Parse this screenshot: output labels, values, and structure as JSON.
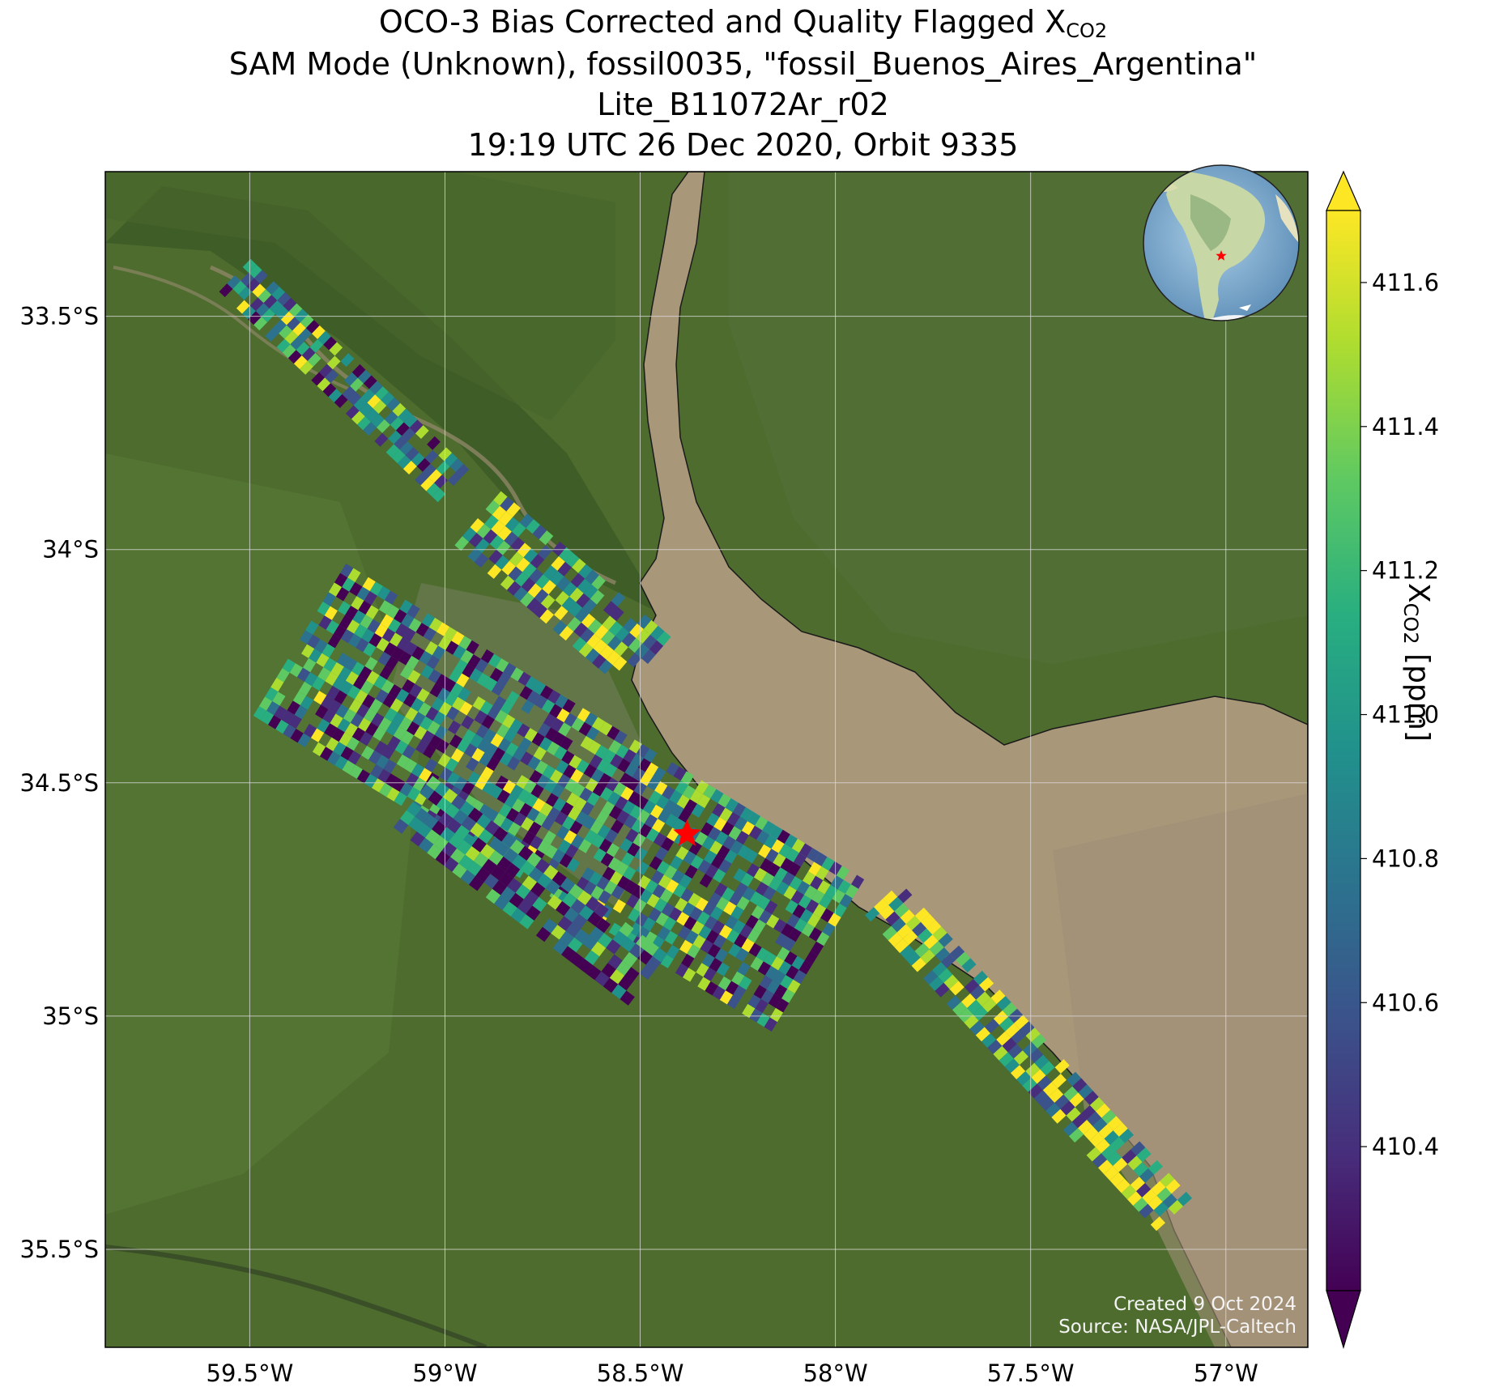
{
  "title": {
    "line1_prefix": "OCO-3 Bias Corrected and Quality Flagged X",
    "line1_sub": "CO2",
    "line2": "SAM Mode (Unknown), fossil0035, \"fossil_Buenos_Aires_Argentina\"",
    "line3": "Lite_B11072Ar_r02",
    "line4": "19:19 UTC 26 Dec 2020, Orbit 9335"
  },
  "map": {
    "lon_range": [
      -59.87,
      -56.79
    ],
    "lat_range": [
      -35.71,
      -33.19
    ],
    "x_ticks": [
      {
        "lon": -59.5,
        "label": "59.5°W"
      },
      {
        "lon": -59.0,
        "label": "59°W"
      },
      {
        "lon": -58.5,
        "label": "58.5°W"
      },
      {
        "lon": -58.0,
        "label": "58°W"
      },
      {
        "lon": -57.5,
        "label": "57.5°W"
      },
      {
        "lon": -57.0,
        "label": "57°W"
      }
    ],
    "y_ticks": [
      {
        "lat": -33.5,
        "label": "33.5°S"
      },
      {
        "lat": -34.0,
        "label": "34°S"
      },
      {
        "lat": -34.5,
        "label": "34.5°S"
      },
      {
        "lat": -35.0,
        "label": "35°S"
      },
      {
        "lat": -35.5,
        "label": "35.5°S"
      }
    ],
    "gridlines": true,
    "target": {
      "name": "fossil_Buenos_Aires_Argentina",
      "lon": -58.38,
      "lat": -34.61,
      "marker": "red-star"
    },
    "inset_globe": {
      "position": "top-right",
      "center": "South America",
      "marker": "red-star"
    },
    "colors": {
      "land": "#4b6a2c",
      "water": "#a8977b",
      "marker": "#ff0000",
      "grid": "#d9d9d9"
    }
  },
  "colorbar": {
    "colormap": "viridis",
    "range": [
      410.2,
      411.7
    ],
    "extend": "both",
    "ticks": [
      "411.6",
      "411.4",
      "411.2",
      "411.0",
      "410.8",
      "410.6",
      "410.4"
    ],
    "label_prefix": "X",
    "label_sub": "CO2",
    "label_suffix": " [ppm]"
  },
  "credits": {
    "created": "Created 9 Oct 2024",
    "source": "Source: NASA/JPL-Caltech"
  }
}
